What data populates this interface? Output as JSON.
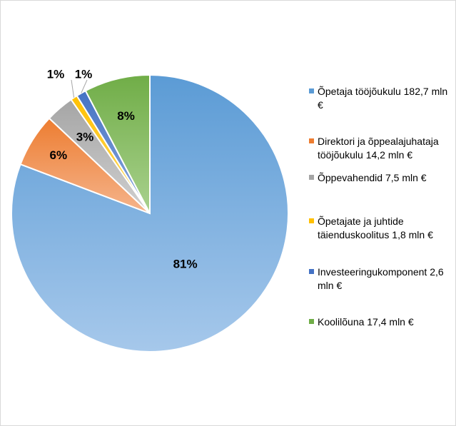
{
  "chart_data": {
    "type": "pie",
    "title": "",
    "start_angle_deg": 0,
    "direction": "clockwise",
    "legend_position": "right",
    "slices": [
      {
        "label": "Õpetaja tööjõukulu  182,7 mln €",
        "value": 182.7,
        "percent_label": "81%",
        "color": "#5b9bd5",
        "color_light": "#a6c8eb"
      },
      {
        "label": "Direktori  ja õppealajuhataja tööjõukulu 14,2 mln €",
        "value": 14.2,
        "percent_label": "6%",
        "color": "#ed7d31",
        "color_light": "#f5b48c"
      },
      {
        "label": "Õppevahendid  7,5 mln €",
        "value": 7.5,
        "percent_label": "3%",
        "color": "#a5a5a5",
        "color_light": "#d0d0d0"
      },
      {
        "label": "Õpetajate ja juhtide täienduskoolitus  1,8 mln €",
        "value": 1.8,
        "percent_label": "1%",
        "color": "#ffc000",
        "color_light": "#ffdc6e"
      },
      {
        "label": "Investeeringukomponent 2,6 mln €",
        "value": 2.6,
        "percent_label": "1%",
        "color": "#4472c4",
        "color_light": "#8eaadc"
      },
      {
        "label": "Koolilõuna 17,4 mln €",
        "value": 17.4,
        "percent_label": "8%",
        "color": "#70ad47",
        "color_light": "#a9d18e"
      }
    ]
  }
}
